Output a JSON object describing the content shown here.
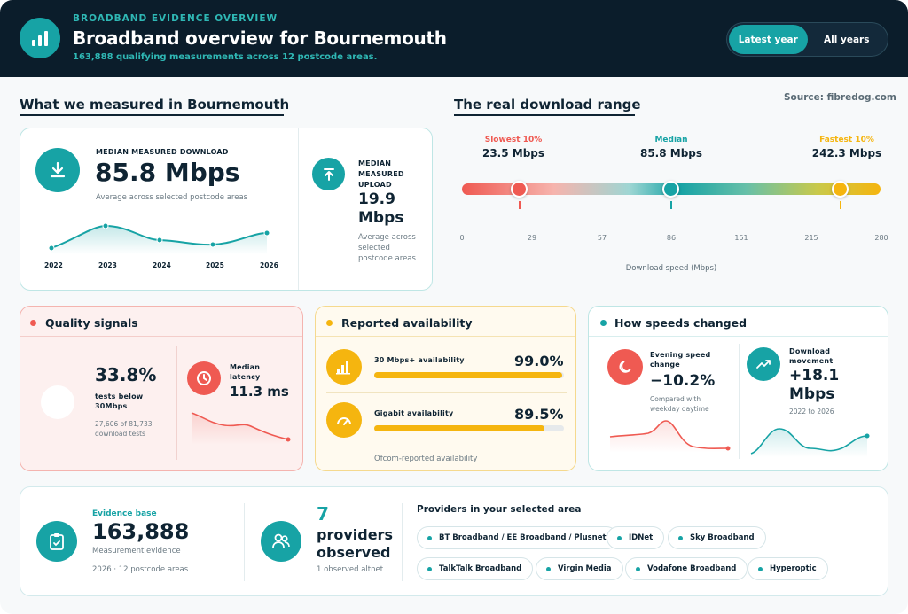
{
  "header": {
    "eyebrow": "BROADBAND EVIDENCE OVERVIEW",
    "title": "Broadband overview for Bournemouth",
    "subtitle": "163,888 qualifying measurements across 12 postcode areas.",
    "toggle": [
      "Latest year",
      "All years"
    ],
    "active_toggle": "Latest year"
  },
  "measured": {
    "section_title": "What we measured in Bournemouth",
    "download_caption": "MEDIAN MEASURED DOWNLOAD",
    "download_value": "85.8 Mbps",
    "download_note": "Average across selected postcode areas",
    "trend_years": [
      "2022",
      "2023",
      "2024",
      "2025",
      "2026"
    ],
    "upload_caption": "MEDIAN MEASURED UPLOAD",
    "upload_value": "19.9 Mbps",
    "upload_note": "Average across selected postcode areas"
  },
  "range": {
    "section_title": "The real download range",
    "source": "Source: fibredog.com",
    "slowest_label": "Slowest 10%",
    "slowest_value": "23.5 Mbps",
    "median_label": "Median",
    "median_value": "85.8 Mbps",
    "fastest_label": "Fastest 10%",
    "fastest_value": "242.3 Mbps",
    "ticks": [
      "0",
      "29",
      "57",
      "86",
      "151",
      "215",
      "280"
    ],
    "axis_label": "Download speed (Mbps)"
  },
  "quality": {
    "title": "Quality signals",
    "pct_value": "33.8%",
    "pct_caption": "tests below 30Mbps",
    "pct_note": "27,606 of 81,733 download tests",
    "latency_caption": "Median latency",
    "latency_value": "11.3 ms"
  },
  "availability": {
    "title": "Reported availability",
    "row1_label": "30 Mbps+ availability",
    "row1_value": "99.0%",
    "row1_fill": 0.99,
    "row2_label": "Gigabit availability",
    "row2_value": "89.5%",
    "row2_fill": 0.895,
    "note": "Ofcom-reported availability"
  },
  "changes": {
    "title": "How speeds changed",
    "evening_caption": "Evening speed change",
    "evening_value": "−10.2%",
    "evening_note": "Compared with weekday daytime",
    "movement_caption": "Download movement",
    "movement_value": "+18.1 Mbps",
    "movement_note": "2022 to 2026"
  },
  "evidence": {
    "caption": "Evidence base",
    "value": "163,888",
    "note1": "Measurement evidence",
    "note2": "2026 · 12 postcode areas",
    "providers_count": "7",
    "providers_word1": "providers",
    "providers_word2": "observed",
    "providers_note": "1 observed altnet",
    "providers_title": "Providers in your selected area",
    "providers": [
      "BT Broadband / EE Broadband / Plusnet",
      "IDNet",
      "Sky Broadband",
      "TalkTalk Broadband",
      "Virgin Media",
      "Vodafone Broadband",
      "Hyperoptic"
    ]
  },
  "colors": {
    "teal": "#17a3a5",
    "navy": "#0b1d2b",
    "coral": "#ef5a52",
    "amber": "#f5b50f"
  }
}
